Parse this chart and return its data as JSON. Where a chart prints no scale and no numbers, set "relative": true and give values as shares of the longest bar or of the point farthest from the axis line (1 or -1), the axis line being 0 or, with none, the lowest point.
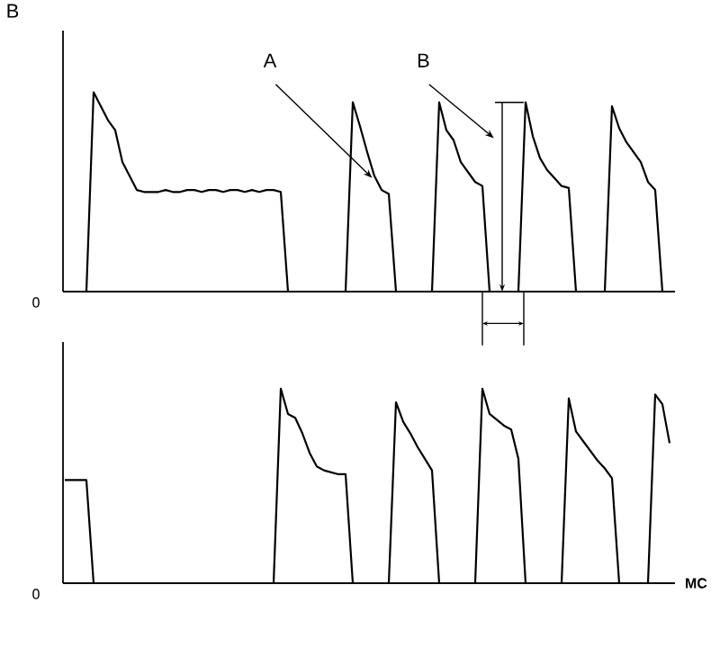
{
  "chart_data": [
    {
      "type": "line",
      "title": "B",
      "relative": true,
      "color": "#000000",
      "categories": [
        null,
        null,
        null,
        null,
        null,
        null,
        null,
        null,
        null,
        null,
        null,
        null,
        null,
        null,
        null,
        null,
        null,
        null,
        null,
        null,
        null,
        null,
        null,
        null,
        null,
        null,
        null,
        null,
        null,
        null,
        null,
        null,
        null,
        null,
        null,
        null,
        null,
        null,
        null,
        null,
        null,
        null,
        null,
        null,
        null,
        null,
        null,
        null,
        null,
        null,
        null,
        null,
        null,
        null,
        null,
        null,
        null,
        null,
        null,
        null,
        null,
        null,
        null,
        null,
        null,
        null,
        null,
        null,
        null,
        null,
        null,
        null,
        null,
        null,
        null,
        null,
        null,
        null,
        null,
        null,
        null,
        null,
        null,
        null,
        null
      ],
      "values": [
        0,
        0,
        0,
        0,
        1.0,
        0.93,
        0.86,
        0.81,
        0.65,
        0.58,
        0.51,
        0.5,
        0.5,
        0.5,
        0.51,
        0.5,
        0.5,
        0.51,
        0.51,
        0.5,
        0.51,
        0.51,
        0.5,
        0.51,
        0.51,
        0.5,
        0.51,
        0.5,
        0.51,
        0.51,
        0.5,
        0,
        0,
        0,
        0,
        0,
        0,
        0,
        0,
        0,
        0.95,
        0.83,
        0.7,
        0.58,
        0.51,
        0.49,
        0,
        0,
        0,
        0,
        0,
        0,
        0.95,
        0.81,
        0.76,
        0.65,
        0.6,
        0.55,
        0.53,
        0,
        0,
        0,
        0,
        0,
        0.95,
        0.78,
        0.67,
        0.61,
        0.57,
        0.53,
        0.52,
        0,
        0,
        0,
        0,
        0,
        0.93,
        0.82,
        0.75,
        0.7,
        0.65,
        0.55,
        0.51,
        0,
        0
      ],
      "annotations": [
        "0",
        "A",
        "B"
      ]
    },
    {
      "type": "line",
      "relative": true,
      "color": "#000000",
      "xlabel": "MC",
      "categories": [
        null,
        null,
        null,
        null,
        null,
        null,
        null,
        null,
        null,
        null,
        null,
        null,
        null,
        null,
        null,
        null,
        null,
        null,
        null,
        null,
        null,
        null,
        null,
        null,
        null,
        null,
        null,
        null,
        null,
        null,
        null,
        null,
        null,
        null,
        null,
        null,
        null,
        null,
        null,
        null,
        null,
        null,
        null,
        null,
        null,
        null,
        null,
        null,
        null,
        null,
        null,
        null,
        null,
        null,
        null,
        null,
        null,
        null,
        null,
        null,
        null,
        null,
        null,
        null,
        null,
        null,
        null,
        null,
        null,
        null,
        null,
        null,
        null,
        null,
        null,
        null,
        null,
        null,
        null,
        null,
        null,
        null,
        null,
        null,
        null
      ],
      "values": [
        0.53,
        0.53,
        0.53,
        0.53,
        0,
        0,
        0,
        0,
        0,
        0,
        0,
        0,
        0,
        0,
        0,
        0,
        0,
        0,
        0,
        0,
        0,
        0,
        0,
        0,
        0,
        0,
        0,
        0,
        0,
        0,
        1.0,
        0.87,
        0.85,
        0.77,
        0.67,
        0.6,
        0.58,
        0.57,
        0.56,
        0.56,
        0,
        0,
        0,
        0,
        0,
        0,
        0.93,
        0.83,
        0.77,
        0.7,
        0.64,
        0.58,
        0,
        0,
        0,
        0,
        0,
        0,
        1.0,
        0.87,
        0.84,
        0.81,
        0.79,
        0.64,
        0,
        0,
        0,
        0,
        0,
        0,
        0.95,
        0.78,
        0.73,
        0.68,
        0.63,
        0.59,
        0.54,
        0,
        0,
        0,
        0,
        0,
        0.97,
        0.92,
        0.72
      ],
      "annotations": [
        "0"
      ]
    }
  ]
}
